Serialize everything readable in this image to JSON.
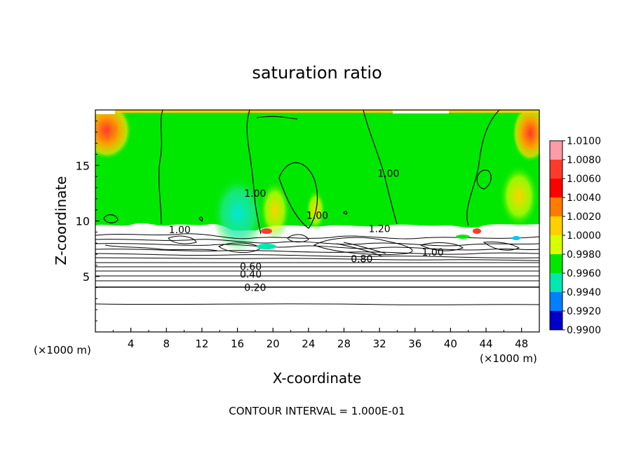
{
  "chart_data": {
    "type": "heatmap",
    "title": "saturation ratio",
    "xlabel": "X-coordinate",
    "ylabel": "Z-coordinate",
    "x_unit": "(×1000 m)",
    "z_unit": "(×1000 m)",
    "xlim": [
      0,
      50
    ],
    "ylim": [
      0,
      20
    ],
    "x_ticks": [
      4,
      8,
      12,
      16,
      20,
      24,
      28,
      32,
      36,
      40,
      44,
      48
    ],
    "y_ticks": [
      5,
      10,
      15
    ],
    "footer": "CONTOUR INTERVAL = 1.000E-01",
    "colorbar": {
      "labels": [
        "1.0100",
        "1.0080",
        "1.0060",
        "1.0040",
        "1.0020",
        "1.0000",
        "0.9980",
        "0.9960",
        "0.9940",
        "0.9920",
        "0.9900"
      ],
      "colors": [
        "#ff9aa8",
        "#ff3a2a",
        "#ff0000",
        "#ff7a00",
        "#ffd000",
        "#d6ff00",
        "#00e800",
        "#00e8b0",
        "#0080ff",
        "#0000c8",
        "#600090"
      ]
    },
    "contour_labels": [
      {
        "text": "0.20",
        "x": 18,
        "z": 4.0
      },
      {
        "text": "0.40",
        "x": 17.5,
        "z": 5.2
      },
      {
        "text": "0.60",
        "x": 17.5,
        "z": 5.9
      },
      {
        "text": "0.80",
        "x": 30,
        "z": 6.6
      },
      {
        "text": "1.00",
        "x": 9.5,
        "z": 9.2
      },
      {
        "text": "1.00",
        "x": 18,
        "z": 12.5
      },
      {
        "text": "1.00",
        "x": 25,
        "z": 10.5
      },
      {
        "text": "1.00",
        "x": 33,
        "z": 14.3
      },
      {
        "text": "1.00",
        "x": 38,
        "z": 7.2
      },
      {
        "text": "1.20",
        "x": 32,
        "z": 9.3
      }
    ]
  }
}
